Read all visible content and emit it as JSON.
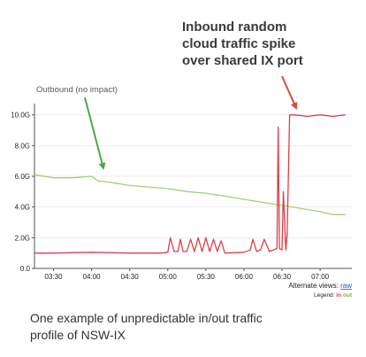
{
  "annotation": {
    "title_lines": [
      "Inbound random",
      "cloud traffic spike",
      "over shared IX port"
    ],
    "outbound_label": "Outbound (no impact)"
  },
  "caption_lines": [
    "One example of unpredictable in/out traffic",
    "profile of NSW-IX"
  ],
  "footer": {
    "alt_views_label": "Alternate views:",
    "alt_views_link": "raw",
    "legend_label": "Legend:",
    "legend_in": "in",
    "legend_out": "out"
  },
  "colors": {
    "inbound": "#d9404a",
    "outbound": "#a6cf72",
    "outbound_label": "#5a5a5a",
    "arrow_green": "#4ea843",
    "arrow_red": "#d05040",
    "axis": "#555555",
    "grid": "#eeeeee",
    "link": "#2255cc"
  },
  "chart_data": {
    "type": "line",
    "title": "",
    "xlabel": "",
    "ylabel": "",
    "ylim": [
      0,
      10.5
    ],
    "xlim": [
      "03:15",
      "07:25"
    ],
    "y_ticks": [
      0,
      2,
      4,
      6,
      8,
      10
    ],
    "y_tick_labels": [
      "0.0",
      "2.0G",
      "4.0G",
      "6.0G",
      "8.0G",
      "10.0G"
    ],
    "x_ticks": [
      "03:30",
      "04:00",
      "04:30",
      "05:00",
      "05:30",
      "06:00",
      "06:30",
      "07:00"
    ],
    "grid": false,
    "legend": "bottom-right",
    "series": [
      {
        "name": "out",
        "x": [
          "03:15",
          "03:30",
          "03:45",
          "04:00",
          "04:05",
          "04:15",
          "04:30",
          "04:45",
          "05:00",
          "05:15",
          "05:30",
          "05:45",
          "06:00",
          "06:15",
          "06:30",
          "06:45",
          "07:00",
          "07:10",
          "07:20"
        ],
        "values": [
          6.1,
          5.9,
          5.9,
          6.0,
          5.7,
          5.6,
          5.4,
          5.3,
          5.2,
          5.0,
          4.9,
          4.7,
          4.5,
          4.3,
          4.1,
          3.9,
          3.7,
          3.5,
          3.5
        ]
      },
      {
        "name": "in",
        "x": [
          "03:15",
          "03:30",
          "04:00",
          "04:30",
          "04:55",
          "05:00",
          "05:02",
          "05:05",
          "05:08",
          "05:10",
          "05:12",
          "05:15",
          "05:18",
          "05:21",
          "05:24",
          "05:27",
          "05:30",
          "05:33",
          "05:36",
          "05:39",
          "05:42",
          "05:45",
          "06:00",
          "06:05",
          "06:07",
          "06:10",
          "06:13",
          "06:16",
          "06:20",
          "06:26",
          "06:27",
          "06:28",
          "06:30",
          "06:31",
          "06:33",
          "06:34",
          "06:35",
          "06:36",
          "06:37",
          "06:40",
          "06:50",
          "07:00",
          "07:10",
          "07:20"
        ],
        "values": [
          1.0,
          1.0,
          1.05,
          1.0,
          1.0,
          1.05,
          2.0,
          1.1,
          1.1,
          1.9,
          1.1,
          1.1,
          1.9,
          1.1,
          2.0,
          1.1,
          2.0,
          1.1,
          1.9,
          1.1,
          1.8,
          1.0,
          1.05,
          1.2,
          1.9,
          1.1,
          1.2,
          1.9,
          1.1,
          1.3,
          9.2,
          1.3,
          1.2,
          5.0,
          1.2,
          2.2,
          6.0,
          10.0,
          10.0,
          10.0,
          9.9,
          10.0,
          9.9,
          10.0
        ]
      }
    ]
  }
}
